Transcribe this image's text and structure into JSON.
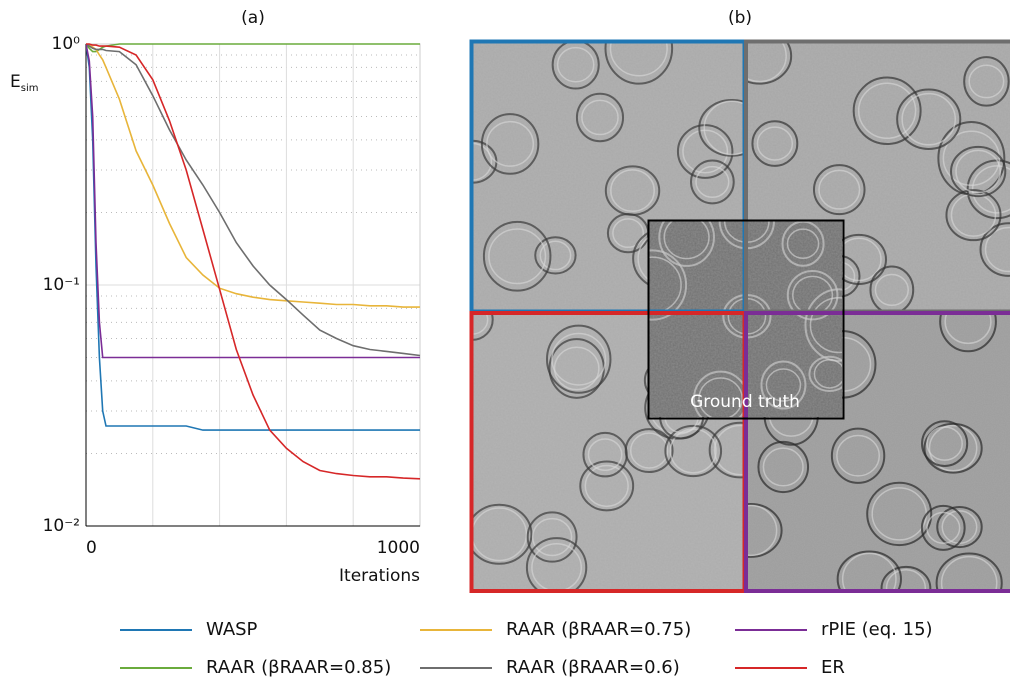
{
  "chart_data": {
    "type": "line",
    "title": "(a)",
    "ylabel": "E",
    "ylabel_sub": "sim",
    "xlabel": "Iterations",
    "log_y": true,
    "grid": true,
    "xlim": [
      0,
      1000
    ],
    "xticks": [
      0,
      1000
    ],
    "xgrid": [
      200,
      400,
      600,
      800
    ],
    "ylim": [
      0.01,
      1
    ],
    "yticks": [
      {
        "value": 0.01,
        "label": "10⁻²"
      },
      {
        "value": 0.1,
        "label": "10⁻¹"
      },
      {
        "value": 1,
        "label": "10⁰"
      }
    ],
    "x": [
      0,
      10,
      20,
      30,
      40,
      50,
      60,
      100,
      150,
      200,
      250,
      300,
      350,
      400,
      450,
      500,
      550,
      600,
      650,
      700,
      750,
      800,
      850,
      900,
      950,
      1000
    ],
    "series": [
      {
        "name": "WASP",
        "color": "#1f77b4",
        "values": [
          1,
          0.8,
          0.4,
          0.12,
          0.05,
          0.03,
          0.026,
          0.026,
          0.026,
          0.026,
          0.026,
          0.026,
          0.025,
          0.025,
          0.025,
          0.025,
          0.025,
          0.025,
          0.025,
          0.025,
          0.025,
          0.025,
          0.025,
          0.025,
          0.025,
          0.025
        ]
      },
      {
        "name": "RAAR (βRAAR=0.85)",
        "color": "#6aab3c",
        "values": [
          1,
          0.96,
          0.93,
          0.93,
          0.95,
          0.97,
          0.98,
          1,
          1,
          1,
          1,
          1,
          1,
          1,
          1,
          1,
          1,
          1,
          1,
          1,
          1,
          1,
          1,
          1,
          1,
          1
        ]
      },
      {
        "name": "RAAR (βRAAR=0.75)",
        "color": "#e8b53a",
        "values": [
          1,
          0.99,
          0.97,
          0.95,
          0.9,
          0.86,
          0.8,
          0.59,
          0.36,
          0.26,
          0.18,
          0.13,
          0.11,
          0.097,
          0.092,
          0.089,
          0.087,
          0.086,
          0.085,
          0.084,
          0.083,
          0.083,
          0.082,
          0.082,
          0.081,
          0.081
        ]
      },
      {
        "name": "RAAR (βRAAR=0.6)",
        "color": "#6e6e6e",
        "values": [
          1,
          0.98,
          0.96,
          0.95,
          0.95,
          0.95,
          0.94,
          0.93,
          0.82,
          0.61,
          0.44,
          0.33,
          0.26,
          0.2,
          0.15,
          0.12,
          0.1,
          0.087,
          0.075,
          0.065,
          0.06,
          0.056,
          0.054,
          0.053,
          0.052,
          0.051
        ]
      },
      {
        "name": "rPIE (eq. 15)",
        "color": "#7b2d96",
        "values": [
          1,
          0.85,
          0.5,
          0.15,
          0.07,
          0.05,
          0.05,
          0.05,
          0.05,
          0.05,
          0.05,
          0.05,
          0.05,
          0.05,
          0.05,
          0.05,
          0.05,
          0.05,
          0.05,
          0.05,
          0.05,
          0.05,
          0.05,
          0.05,
          0.05,
          0.05
        ]
      },
      {
        "name": "ER",
        "color": "#d62728",
        "values": [
          1,
          1,
          0.99,
          0.99,
          0.98,
          0.98,
          0.98,
          0.97,
          0.9,
          0.71,
          0.48,
          0.3,
          0.17,
          0.096,
          0.054,
          0.035,
          0.025,
          0.021,
          0.0185,
          0.017,
          0.0165,
          0.0162,
          0.016,
          0.016,
          0.0158,
          0.0157
        ]
      }
    ]
  },
  "panel_b": {
    "title": "(b)",
    "inset_label": "Ground truth"
  }
}
